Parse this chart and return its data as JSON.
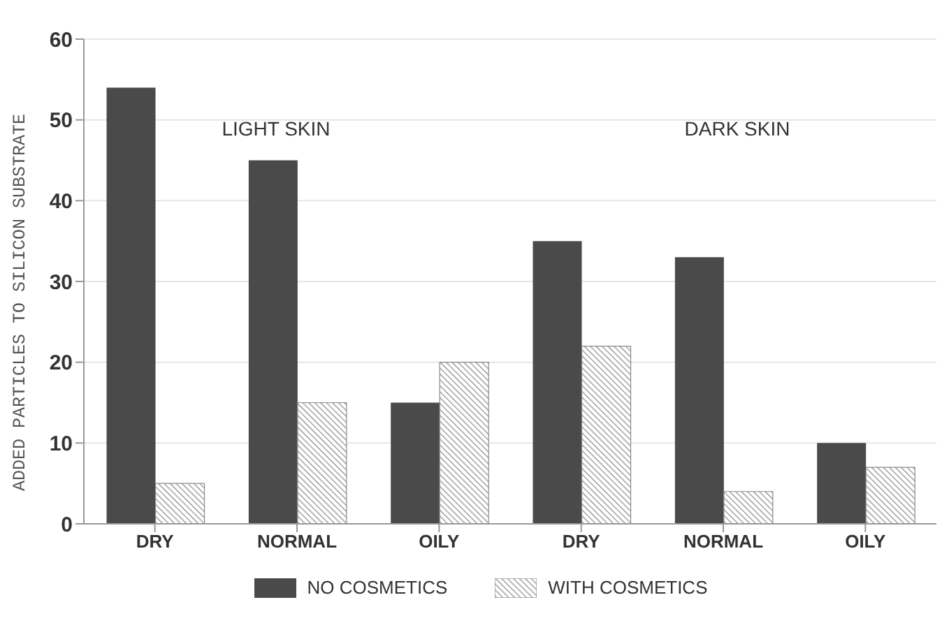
{
  "chart_data": {
    "type": "bar",
    "ylabel": "ADDED PARTICLES TO SILICON SUBSTRATE",
    "categories": [
      "DRY",
      "NORMAL",
      "OILY",
      "DRY",
      "NORMAL",
      "OILY"
    ],
    "series": [
      {
        "name": "NO COSMETICS",
        "color": "#4a4a4a",
        "values": [
          54,
          45,
          15,
          35,
          33,
          10
        ]
      },
      {
        "name": "WITH COSMETICS",
        "color": "#8a8a8a",
        "values": [
          5,
          15,
          20,
          22,
          4,
          7
        ]
      }
    ],
    "ylim": [
      0,
      60
    ],
    "yticks": [
      0,
      10,
      20,
      30,
      40,
      50,
      60
    ],
    "grid": "y",
    "legend": "bottom",
    "annotations": [
      "LIGHT SKIN",
      "DARK SKIN"
    ]
  }
}
